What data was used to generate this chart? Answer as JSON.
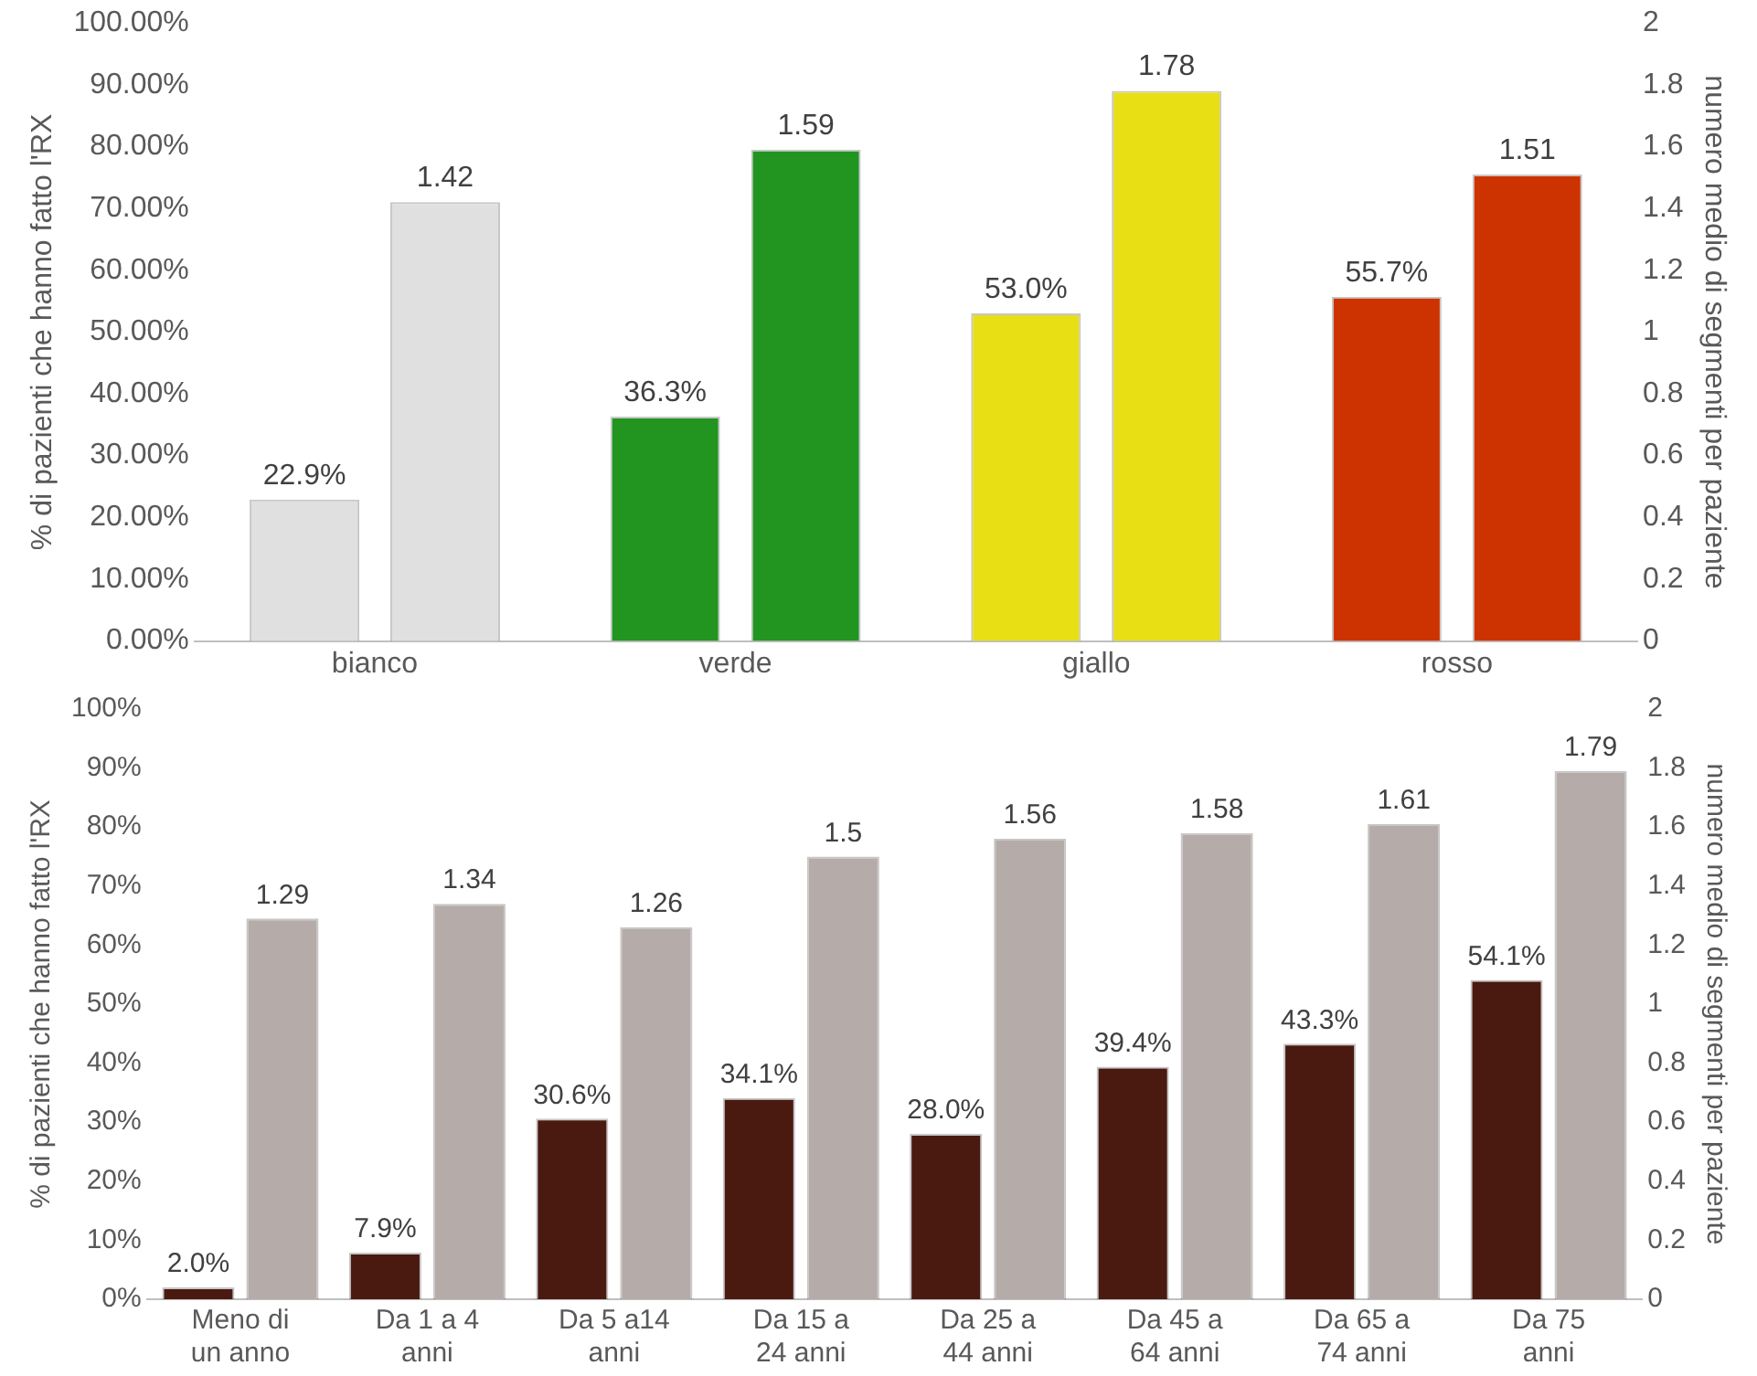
{
  "chart_data": [
    {
      "type": "bar",
      "categories": [
        "bianco",
        "verde",
        "giallo",
        "rosso"
      ],
      "ylabel": "% di pazienti che hanno fatto l'RX",
      "y2label": "numero medio di segmenti per paziente",
      "ylim": [
        0,
        100
      ],
      "yticks": [
        {
          "value": 0,
          "label": "0.00%"
        },
        {
          "value": 10,
          "label": "10.00%"
        },
        {
          "value": 20,
          "label": "20.00%"
        },
        {
          "value": 30,
          "label": "30.00%"
        },
        {
          "value": 40,
          "label": "40.00%"
        },
        {
          "value": 50,
          "label": "50.00%"
        },
        {
          "value": 60,
          "label": "60.00%"
        },
        {
          "value": 70,
          "label": "70.00%"
        },
        {
          "value": 80,
          "label": "80.00%"
        },
        {
          "value": 90,
          "label": "90.00%"
        },
        {
          "value": 100,
          "label": "100.00%"
        }
      ],
      "y2lim": [
        0,
        2
      ],
      "y2ticks": [
        0,
        0.2,
        0.4,
        0.6,
        0.8,
        1,
        1.2,
        1.4,
        1.6,
        1.8,
        2
      ],
      "series": [
        {
          "colors": [
            "#e0e0e0",
            "#229420",
            "#e8df14",
            "#cc3300"
          ],
          "values": [
            22.9,
            36.3,
            53.0,
            55.7
          ],
          "value_labels": [
            "22.9%",
            "36.3%",
            "53.0%",
            "55.7%"
          ]
        },
        {
          "axis": "y2",
          "colors": [
            "#e0e0e0",
            "#229420",
            "#e8df14",
            "#cc3300"
          ],
          "values": [
            1.42,
            1.59,
            1.78,
            1.51
          ],
          "value_labels": [
            "1.42",
            "1.59",
            "1.78",
            "1.51"
          ]
        }
      ],
      "grid": false,
      "legend": false
    },
    {
      "type": "bar",
      "categories": [
        "Meno di un anno",
        "Da 1 a 4 anni",
        "Da 5 a14 anni",
        "Da 15 a 24 anni",
        "Da 25 a 44 anni",
        "Da 45 a 64 anni",
        "Da 65 a 74 anni",
        "Da 75 anni"
      ],
      "ylabel": "% di pazienti che hanno fatto l'RX",
      "y2label": "numero medio di segmenti per paziente",
      "ylim": [
        0,
        100
      ],
      "yticks": [
        {
          "value": 0,
          "label": "0%"
        },
        {
          "value": 10,
          "label": "10%"
        },
        {
          "value": 20,
          "label": "20%"
        },
        {
          "value": 30,
          "label": "30%"
        },
        {
          "value": 40,
          "label": "40%"
        },
        {
          "value": 50,
          "label": "50%"
        },
        {
          "value": 60,
          "label": "60%"
        },
        {
          "value": 70,
          "label": "70%"
        },
        {
          "value": 80,
          "label": "80%"
        },
        {
          "value": 90,
          "label": "90%"
        },
        {
          "value": 100,
          "label": "100%"
        }
      ],
      "y2lim": [
        0,
        2
      ],
      "y2ticks": [
        0,
        0.2,
        0.4,
        0.6,
        0.8,
        1,
        1.2,
        1.4,
        1.6,
        1.8,
        2
      ],
      "series": [
        {
          "color": "#4a1a10",
          "values": [
            2.0,
            7.9,
            30.6,
            34.1,
            28.0,
            39.4,
            43.3,
            54.1
          ],
          "value_labels": [
            "2.0%",
            "7.9%",
            "30.6%",
            "34.1%",
            "28.0%",
            "39.4%",
            "43.3%",
            "54.1%"
          ]
        },
        {
          "axis": "y2",
          "color": "#b5aba9",
          "values": [
            1.29,
            1.34,
            1.26,
            1.5,
            1.56,
            1.58,
            1.61,
            1.79
          ],
          "value_labels": [
            "1.29",
            "1.34",
            "1.26",
            "1.5",
            "1.56",
            "1.58",
            "1.61",
            "1.79"
          ]
        }
      ],
      "grid": false,
      "legend": false
    }
  ]
}
